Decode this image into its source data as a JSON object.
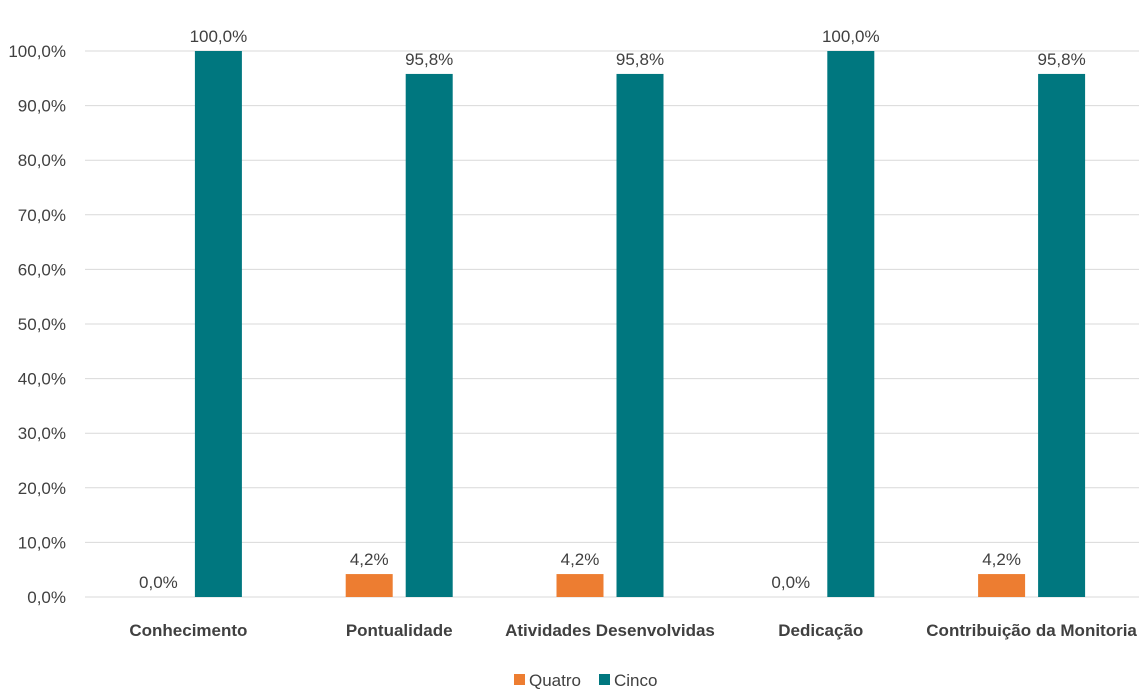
{
  "chart_data": {
    "type": "bar",
    "categories": [
      "Conhecimento",
      "Pontualidade",
      "Atividades Desenvolvidas",
      "Dedicação",
      "Contribuição da Monitoria"
    ],
    "series": [
      {
        "name": "Quatro",
        "color": "#ed7d31",
        "values": [
          0.0,
          4.2,
          4.2,
          0.0,
          4.2
        ],
        "labels": [
          "0,0%",
          "4,2%",
          "4,2%",
          "0,0%",
          "4,2%"
        ]
      },
      {
        "name": "Cinco",
        "color": "#00777f",
        "values": [
          100.0,
          95.8,
          95.8,
          100.0,
          95.8
        ],
        "labels": [
          "100,0%",
          "95,8%",
          "95,8%",
          "100,0%",
          "95,8%"
        ]
      }
    ],
    "yticks": [
      "0,0%",
      "10,0%",
      "20,0%",
      "30,0%",
      "40,0%",
      "50,0%",
      "60,0%",
      "70,0%",
      "80,0%",
      "90,0%",
      "100,0%"
    ],
    "ylim": [
      0,
      100
    ],
    "grid": true,
    "legend": "bottom-center",
    "title": "",
    "xlabel": "",
    "ylabel": ""
  }
}
